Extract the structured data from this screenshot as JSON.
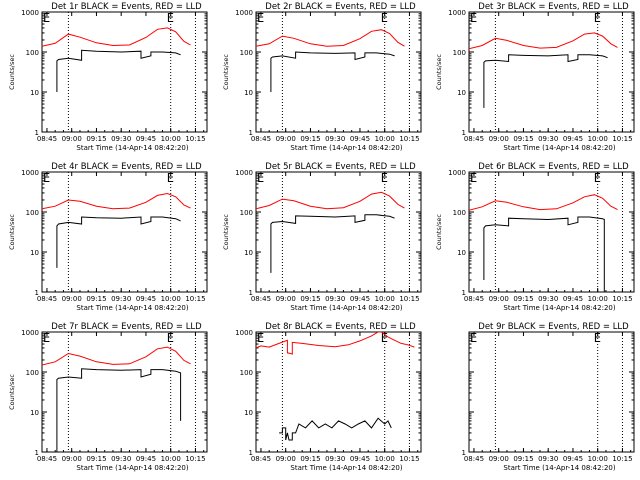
{
  "figure": {
    "colors": {
      "events": "#000000",
      "lld": "#ff0000",
      "axis": "#000000",
      "background": "#ffffff"
    }
  },
  "chart_data": [
    {
      "type": "line",
      "title": "Det 1r BLACK = Events, RED = LLD",
      "xlabel": "Start Time (14-Apr-14 08:42:20)",
      "ylabel": "Counts/sec",
      "x_tick_labels": [
        "08:45",
        "09:00",
        "09:15",
        "09:30",
        "09:45",
        "10:00",
        "10:15"
      ],
      "y_tick_labels": [
        "1",
        "10",
        "100",
        "1000"
      ],
      "y_scale": "log",
      "ylim": [
        1,
        1000
      ],
      "xlim": [
        "08:42",
        "10:22"
      ],
      "markers": [
        {
          "label": "E",
          "x": "08:42"
        },
        {
          "label": "E",
          "x": "10:00"
        }
      ],
      "dotted_lines_x": [
        "08:58",
        "10:00",
        "10:15"
      ],
      "series": [
        {
          "color": "red",
          "x": [
            "08:42",
            "08:50",
            "08:58",
            "09:05",
            "09:15",
            "09:25",
            "09:35",
            "09:45",
            "09:52",
            "09:58",
            "10:03",
            "10:08",
            "10:12"
          ],
          "y": [
            140,
            165,
            280,
            235,
            170,
            145,
            150,
            230,
            370,
            400,
            320,
            185,
            150
          ]
        },
        {
          "color": "black",
          "x": [
            "08:51",
            "08:51",
            "08:52",
            "08:58",
            "09:06",
            "09:06",
            "09:15",
            "09:30",
            "09:42",
            "09:42",
            "09:48",
            "09:48",
            "09:55",
            "10:03",
            "10:06"
          ],
          "y": [
            10,
            60,
            65,
            70,
            62,
            110,
            105,
            100,
            105,
            70,
            80,
            100,
            100,
            95,
            85
          ]
        }
      ]
    },
    {
      "type": "line",
      "title": "Det 2r BLACK = Events, RED = LLD",
      "xlabel": "Start Time (14-Apr-14 08:42:20)",
      "ylabel": "Counts/sec",
      "x_tick_labels": [
        "08:45",
        "09:00",
        "09:15",
        "09:30",
        "09:45",
        "10:00",
        "10:15"
      ],
      "y_tick_labels": [
        "1",
        "10",
        "100",
        "1000"
      ],
      "y_scale": "log",
      "ylim": [
        1,
        1000
      ],
      "xlim": [
        "08:42",
        "10:22"
      ],
      "markers": [
        {
          "label": "E",
          "x": "08:42"
        },
        {
          "label": "E",
          "x": "10:00"
        }
      ],
      "dotted_lines_x": [
        "08:58",
        "10:00",
        "10:15"
      ],
      "series": [
        {
          "color": "red",
          "x": [
            "08:42",
            "08:50",
            "08:58",
            "09:05",
            "09:15",
            "09:25",
            "09:35",
            "09:45",
            "09:52",
            "09:58",
            "10:03",
            "10:08",
            "10:12"
          ],
          "y": [
            140,
            160,
            250,
            220,
            160,
            140,
            145,
            215,
            330,
            360,
            290,
            175,
            140
          ]
        },
        {
          "color": "black",
          "x": [
            "08:51",
            "08:51",
            "08:52",
            "08:58",
            "09:06",
            "09:06",
            "09:15",
            "09:30",
            "09:42",
            "09:42",
            "09:48",
            "09:48",
            "09:55",
            "10:03",
            "10:06"
          ],
          "y": [
            10,
            70,
            75,
            80,
            70,
            100,
            95,
            92,
            95,
            65,
            75,
            95,
            95,
            88,
            80
          ]
        }
      ]
    },
    {
      "type": "line",
      "title": "Det 3r BLACK = Events, RED = LLD",
      "xlabel": "Start Time (14-Apr-14 08:42:20)",
      "ylabel": "Counts/sec",
      "x_tick_labels": [
        "08:45",
        "09:00",
        "09:15",
        "09:30",
        "09:45",
        "10:00",
        "10:15"
      ],
      "y_tick_labels": [
        "1",
        "10",
        "100",
        "1000"
      ],
      "y_scale": "log",
      "ylim": [
        1,
        1000
      ],
      "xlim": [
        "08:42",
        "10:22"
      ],
      "markers": [
        {
          "label": "E",
          "x": "08:42"
        },
        {
          "label": "E",
          "x": "10:00"
        }
      ],
      "dotted_lines_x": [
        "08:58",
        "10:00",
        "10:15"
      ],
      "series": [
        {
          "color": "red",
          "x": [
            "08:42",
            "08:50",
            "08:58",
            "09:05",
            "09:15",
            "09:25",
            "09:35",
            "09:45",
            "09:52",
            "09:58",
            "10:03",
            "10:08",
            "10:12"
          ],
          "y": [
            120,
            145,
            220,
            195,
            145,
            125,
            130,
            190,
            280,
            300,
            250,
            160,
            130
          ]
        },
        {
          "color": "black",
          "x": [
            "08:51",
            "08:51",
            "08:52",
            "08:58",
            "09:06",
            "09:06",
            "09:15",
            "09:30",
            "09:42",
            "09:42",
            "09:48",
            "09:48",
            "09:55",
            "10:03",
            "10:06"
          ],
          "y": [
            4,
            55,
            60,
            62,
            58,
            85,
            82,
            80,
            85,
            58,
            65,
            85,
            85,
            80,
            72
          ]
        }
      ]
    },
    {
      "type": "line",
      "title": "Det 4r BLACK = Events, RED = LLD",
      "xlabel": "Start Time (14-Apr-14 08:42:20)",
      "ylabel": "Counts/sec",
      "x_tick_labels": [
        "08:45",
        "09:00",
        "09:15",
        "09:30",
        "09:45",
        "10:00",
        "10:15"
      ],
      "y_tick_labels": [
        "1",
        "10",
        "100",
        "1000"
      ],
      "y_scale": "log",
      "ylim": [
        1,
        1000
      ],
      "xlim": [
        "08:42",
        "10:22"
      ],
      "markers": [
        {
          "label": "E",
          "x": "08:42"
        },
        {
          "label": "E",
          "x": "10:00"
        }
      ],
      "dotted_lines_x": [
        "08:58",
        "10:00",
        "10:15"
      ],
      "series": [
        {
          "color": "red",
          "x": [
            "08:42",
            "08:50",
            "08:58",
            "09:05",
            "09:15",
            "09:25",
            "09:35",
            "09:45",
            "09:52",
            "09:58",
            "10:03",
            "10:08",
            "10:12"
          ],
          "y": [
            120,
            140,
            200,
            185,
            140,
            120,
            125,
            175,
            260,
            290,
            240,
            150,
            125
          ]
        },
        {
          "color": "black",
          "x": [
            "08:51",
            "08:51",
            "08:52",
            "08:58",
            "09:06",
            "09:06",
            "09:15",
            "09:30",
            "09:42",
            "09:42",
            "09:48",
            "09:48",
            "09:55",
            "10:03",
            "10:06"
          ],
          "y": [
            4,
            45,
            50,
            55,
            50,
            75,
            72,
            70,
            75,
            50,
            58,
            75,
            75,
            68,
            60
          ]
        }
      ]
    },
    {
      "type": "line",
      "title": "Det 5r BLACK = Events, RED = LLD",
      "xlabel": "Start Time (14-Apr-14 08:42:20)",
      "ylabel": "Counts/sec",
      "x_tick_labels": [
        "08:45",
        "09:00",
        "09:15",
        "09:30",
        "09:45",
        "10:00",
        "10:15"
      ],
      "y_tick_labels": [
        "1",
        "10",
        "100",
        "1000"
      ],
      "y_scale": "log",
      "ylim": [
        1,
        1000
      ],
      "xlim": [
        "08:42",
        "10:22"
      ],
      "markers": [
        {
          "label": "E",
          "x": "08:42"
        },
        {
          "label": "E",
          "x": "10:00"
        }
      ],
      "dotted_lines_x": [
        "08:58",
        "10:00",
        "10:15"
      ],
      "series": [
        {
          "color": "red",
          "x": [
            "08:42",
            "08:50",
            "08:58",
            "09:05",
            "09:15",
            "09:25",
            "09:35",
            "09:45",
            "09:52",
            "09:58",
            "10:03",
            "10:08",
            "10:12"
          ],
          "y": [
            120,
            145,
            210,
            190,
            140,
            120,
            128,
            185,
            280,
            310,
            250,
            155,
            125
          ]
        },
        {
          "color": "black",
          "x": [
            "08:51",
            "08:51",
            "08:52",
            "08:58",
            "09:06",
            "09:06",
            "09:15",
            "09:30",
            "09:42",
            "09:42",
            "09:48",
            "09:48",
            "09:55",
            "10:03",
            "10:06"
          ],
          "y": [
            3,
            50,
            55,
            58,
            52,
            80,
            78,
            75,
            80,
            55,
            62,
            85,
            85,
            78,
            70
          ]
        }
      ]
    },
    {
      "type": "line",
      "title": "Det 6r BLACK = Events, RED = LLD",
      "xlabel": "Start Time (14-Apr-14 08:42:20)",
      "ylabel": "Counts/sec",
      "x_tick_labels": [
        "08:45",
        "09:00",
        "09:15",
        "09:30",
        "09:45",
        "10:00",
        "10:15"
      ],
      "y_tick_labels": [
        "1",
        "10",
        "100",
        "1000"
      ],
      "y_scale": "log",
      "ylim": [
        1,
        1000
      ],
      "xlim": [
        "08:42",
        "10:22"
      ],
      "markers": [
        {
          "label": "E",
          "x": "08:42"
        },
        {
          "label": "E",
          "x": "10:00"
        }
      ],
      "dotted_lines_x": [
        "08:58",
        "10:00",
        "10:15"
      ],
      "series": [
        {
          "color": "red",
          "x": [
            "08:42",
            "08:50",
            "08:58",
            "09:05",
            "09:15",
            "09:25",
            "09:35",
            "09:45",
            "09:52",
            "09:58",
            "10:03",
            "10:08",
            "10:12"
          ],
          "y": [
            110,
            135,
            190,
            175,
            135,
            115,
            120,
            170,
            240,
            270,
            220,
            140,
            115
          ]
        },
        {
          "color": "black",
          "x": [
            "08:51",
            "08:51",
            "08:52",
            "08:58",
            "09:06",
            "09:06",
            "09:15",
            "09:30",
            "09:42",
            "09:42",
            "09:48",
            "09:48",
            "09:55",
            "10:03",
            "10:04",
            "10:04"
          ],
          "y": [
            2,
            40,
            45,
            48,
            45,
            70,
            68,
            65,
            70,
            48,
            55,
            75,
            75,
            68,
            65,
            1
          ]
        }
      ]
    },
    {
      "type": "line",
      "title": "Det 7r BLACK = Events, RED = LLD",
      "xlabel": "Start Time (14-Apr-14 08:42:20)",
      "ylabel": "Counts/sec",
      "x_tick_labels": [
        "08:45",
        "09:00",
        "09:15",
        "09:30",
        "09:45",
        "10:00",
        "10:15"
      ],
      "y_tick_labels": [
        "1",
        "10",
        "100",
        "1000"
      ],
      "y_scale": "log",
      "ylim": [
        1,
        1000
      ],
      "xlim": [
        "08:42",
        "10:22"
      ],
      "markers": [
        {
          "label": "E",
          "x": "08:42"
        },
        {
          "label": "E",
          "x": "10:00"
        }
      ],
      "dotted_lines_x": [
        "08:58",
        "10:00",
        "10:15"
      ],
      "series": [
        {
          "color": "red",
          "x": [
            "08:42",
            "08:50",
            "08:58",
            "09:05",
            "09:15",
            "09:25",
            "09:35",
            "09:45",
            "09:52",
            "09:58",
            "10:03",
            "10:08",
            "10:12"
          ],
          "y": [
            150,
            180,
            290,
            250,
            180,
            155,
            160,
            240,
            380,
            420,
            330,
            195,
            160
          ]
        },
        {
          "color": "black",
          "x": [
            "08:51",
            "08:51",
            "08:52",
            "08:58",
            "09:06",
            "09:06",
            "09:15",
            "09:30",
            "09:42",
            "09:42",
            "09:48",
            "09:48",
            "09:55",
            "10:03",
            "10:06",
            "10:06"
          ],
          "y": [
            1,
            65,
            70,
            75,
            70,
            120,
            115,
            110,
            115,
            75,
            88,
            115,
            115,
            105,
            95,
            6
          ]
        }
      ]
    },
    {
      "type": "line",
      "title": "Det 8r BLACK = Events, RED = LLD",
      "xlabel": "Start Time (14-Apr-14 08:42:20)",
      "ylabel": "",
      "x_tick_labels": [
        "08:45",
        "09:00",
        "09:15",
        "09:30",
        "09:45",
        "10:00",
        "10:15"
      ],
      "y_tick_labels": [
        "1",
        "10",
        "100",
        "1000"
      ],
      "y_scale": "log",
      "ylim": [
        1,
        1000
      ],
      "xlim": [
        "08:42",
        "10:22"
      ],
      "markers": [
        {
          "label": "E",
          "x": "08:42"
        },
        {
          "label": "E",
          "x": "10:00"
        }
      ],
      "dotted_lines_x": [
        "08:58",
        "10:00",
        "10:15"
      ],
      "series": [
        {
          "color": "red",
          "x": [
            "08:42",
            "08:45",
            "08:50",
            "08:55",
            "09:00",
            "09:01",
            "09:01",
            "09:03",
            "09:04",
            "09:04",
            "09:10",
            "09:20",
            "09:30",
            "09:38",
            "09:45",
            "09:52",
            "09:56",
            "09:58",
            "10:02",
            "10:06",
            "10:10",
            "10:14",
            "10:18"
          ],
          "y": [
            400,
            450,
            420,
            500,
            600,
            620,
            300,
            290,
            280,
            550,
            520,
            460,
            430,
            480,
            600,
            800,
            1000,
            1000,
            750,
            620,
            520,
            480,
            420
          ]
        },
        {
          "color": "black",
          "x": [
            "08:56",
            "08:58",
            "08:58",
            "09:00",
            "09:00",
            "09:01",
            "09:02",
            "09:04",
            "09:04",
            "09:06",
            "09:08",
            "09:12",
            "09:16",
            "09:20",
            "09:24",
            "09:28",
            "09:32",
            "09:36",
            "09:40",
            "09:44",
            "09:48",
            "09:52",
            "09:56",
            "10:00",
            "10:02",
            "10:04"
          ],
          "y": [
            3,
            3,
            4,
            4,
            2,
            3,
            2,
            2,
            3,
            3,
            5,
            4,
            6,
            4,
            5,
            4,
            6,
            5,
            4,
            5,
            6,
            4,
            7,
            5,
            6,
            4
          ]
        }
      ]
    },
    {
      "type": "line",
      "title": "Det 9r BLACK = Events, RED = LLD",
      "xlabel": "Start Time (14-Apr-14 08:42:20)",
      "ylabel": "",
      "x_tick_labels": [
        "08:45",
        "09:00",
        "09:15",
        "09:30",
        "09:45",
        "10:00",
        "10:15"
      ],
      "y_tick_labels": [
        "1"
      ],
      "y_scale": "log",
      "ylim": [
        1,
        1000
      ],
      "xlim": [
        "08:42",
        "10:22"
      ],
      "markers": [
        {
          "label": "E",
          "x": "08:42"
        },
        {
          "label": "E",
          "x": "10:00"
        }
      ],
      "dotted_lines_x": [
        "08:58",
        "10:00",
        "10:15"
      ],
      "series": []
    }
  ]
}
